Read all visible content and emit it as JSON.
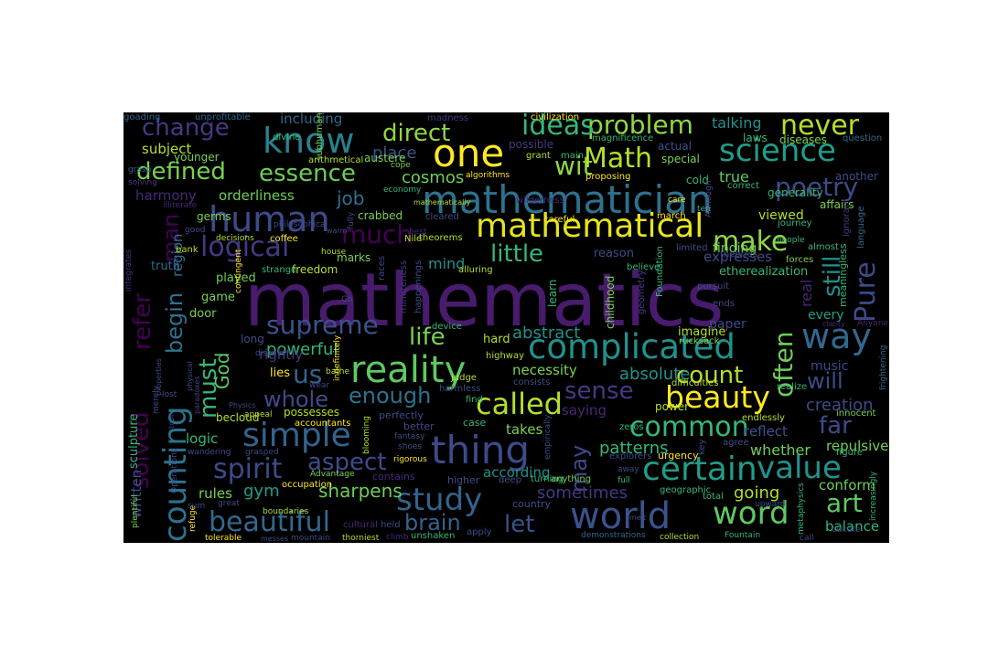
{
  "palette": {
    "background": "#000000",
    "page_background": "#ffffff",
    "colormap": "viridis",
    "colors": [
      "#440154",
      "#482878",
      "#3e4989",
      "#31688e",
      "#26828e",
      "#1f9e89",
      "#35b779",
      "#6ece58",
      "#b5de2b",
      "#fde725"
    ]
  },
  "words": [
    {
      "text": "mathematics",
      "color": "#481b6d"
    },
    {
      "text": "mathematician",
      "color": "#2c728e"
    },
    {
      "text": "complicated",
      "color": "#21918c"
    },
    {
      "text": "mathematical",
      "color": "#e5e419"
    },
    {
      "text": "thing",
      "color": "#3e4a89"
    },
    {
      "text": "world",
      "color": "#3b528b"
    },
    {
      "text": "simple",
      "color": "#33638d"
    },
    {
      "text": "reality",
      "color": "#5ec962"
    },
    {
      "text": "one",
      "color": "#fde725"
    },
    {
      "text": "human",
      "color": "#3e4a89"
    },
    {
      "text": "know",
      "color": "#26828e"
    },
    {
      "text": "science",
      "color": "#1f9e89"
    },
    {
      "text": "way",
      "color": "#31688e"
    },
    {
      "text": "beauty",
      "color": "#fde725"
    },
    {
      "text": "study",
      "color": "#33638d"
    },
    {
      "text": "certain",
      "color": "#1f9e89"
    },
    {
      "text": "value",
      "color": "#21918c"
    },
    {
      "text": "word",
      "color": "#5ec962"
    },
    {
      "text": "counting",
      "color": "#2c728e"
    },
    {
      "text": "make",
      "color": "#90d743"
    },
    {
      "text": "called",
      "color": "#b5de2b"
    },
    {
      "text": "beautiful",
      "color": "#31688e"
    },
    {
      "text": "spirit",
      "color": "#3e4a89"
    },
    {
      "text": "common",
      "color": "#35b779"
    },
    {
      "text": "supreme",
      "color": "#3b528b"
    },
    {
      "text": "problem",
      "color": "#90d743"
    },
    {
      "text": "never",
      "color": "#b5de2b"
    },
    {
      "text": "ideas",
      "color": "#35b779"
    },
    {
      "text": "logical",
      "color": "#443983"
    },
    {
      "text": "much",
      "color": "#440154"
    },
    {
      "text": "Pure",
      "color": "#3e4a89"
    },
    {
      "text": "poetry",
      "color": "#3e4a89"
    },
    {
      "text": "wit",
      "color": "#90d743"
    },
    {
      "text": "Math",
      "color": "#b5de2b"
    },
    {
      "text": "us",
      "color": "#33638d"
    },
    {
      "text": "art",
      "color": "#5ec962"
    },
    {
      "text": "let",
      "color": "#3b528b"
    },
    {
      "text": "whole",
      "color": "#3e4a89"
    },
    {
      "text": "enough",
      "color": "#2c728e"
    },
    {
      "text": "aspect",
      "color": "#3e4a89"
    },
    {
      "text": "often",
      "color": "#6ece58"
    },
    {
      "text": "change",
      "color": "#443983"
    },
    {
      "text": "defined",
      "color": "#7ad151"
    },
    {
      "text": "essence",
      "color": "#6ece58"
    },
    {
      "text": "direct",
      "color": "#90d743"
    },
    {
      "text": "must",
      "color": "#35b779"
    },
    {
      "text": "life",
      "color": "#7ad151"
    },
    {
      "text": "little",
      "color": "#35b779"
    },
    {
      "text": "count",
      "color": "#b5de2b"
    },
    {
      "text": "sense",
      "color": "#443983"
    },
    {
      "text": "far",
      "color": "#3e4a89"
    },
    {
      "text": "will",
      "color": "#3e4a89"
    },
    {
      "text": "still",
      "color": "#21918c"
    },
    {
      "text": "brain",
      "color": "#33638d"
    },
    {
      "text": "gym",
      "color": "#1f9e89"
    },
    {
      "text": "solved",
      "color": "#440154"
    },
    {
      "text": "refer",
      "color": "#440154"
    },
    {
      "text": "begin",
      "color": "#2c728e"
    },
    {
      "text": "may",
      "color": "#3e4a89"
    },
    {
      "text": "sometimes",
      "color": "#443983"
    },
    {
      "text": "sharpens",
      "color": "#6ece58"
    },
    {
      "text": "patterns",
      "color": "#35b779"
    },
    {
      "text": "going",
      "color": "#b5de2b"
    },
    {
      "text": "creation",
      "color": "#3e4a89"
    },
    {
      "text": "God",
      "color": "#5ec962"
    },
    {
      "text": "man",
      "color": "#440154"
    },
    {
      "text": "job",
      "color": "#2c728e"
    },
    {
      "text": "cosmos",
      "color": "#6ece58"
    },
    {
      "text": "abstract",
      "color": "#21918c"
    },
    {
      "text": "absolute",
      "color": "#21918c"
    },
    {
      "text": "powerful",
      "color": "#35b779"
    },
    {
      "text": "necessity",
      "color": "#7ad151"
    },
    {
      "text": "mind",
      "color": "#21918c"
    },
    {
      "text": "place",
      "color": "#3b528b"
    },
    {
      "text": "talking",
      "color": "#21918c"
    },
    {
      "text": "true",
      "color": "#5ec962"
    },
    {
      "text": "whether",
      "color": "#6ece58"
    },
    {
      "text": "written",
      "color": "#3b528b"
    },
    {
      "text": "harmony",
      "color": "#482878"
    },
    {
      "text": "subject",
      "color": "#b5de2b"
    },
    {
      "text": "orderliness",
      "color": "#6ece58"
    },
    {
      "text": "including",
      "color": "#31688e"
    },
    {
      "text": "region",
      "color": "#2c728e"
    },
    {
      "text": "takes",
      "color": "#7ad151"
    },
    {
      "text": "saying",
      "color": "#482878"
    },
    {
      "text": "according",
      "color": "#21918c"
    },
    {
      "text": "conform",
      "color": "#6ece58"
    },
    {
      "text": "balance",
      "color": "#35b779"
    },
    {
      "text": "rules",
      "color": "#7ad151"
    },
    {
      "text": "logic",
      "color": "#35b779"
    },
    {
      "text": "reflect",
      "color": "#3b528b"
    },
    {
      "text": "repulsive",
      "color": "#6ece58"
    },
    {
      "text": "rightly",
      "color": "#443983"
    },
    {
      "text": "expresses",
      "color": "#3e4a89"
    },
    {
      "text": "finding",
      "color": "#6ece58"
    },
    {
      "text": "viewed",
      "color": "#b5de2b"
    },
    {
      "text": "real",
      "color": "#482878"
    },
    {
      "text": "music",
      "color": "#3e4a89"
    },
    {
      "text": "every",
      "color": "#1f9e89"
    },
    {
      "text": "paper",
      "color": "#3e4a89"
    },
    {
      "text": "hard",
      "color": "#b5de2b"
    },
    {
      "text": "imagine",
      "color": "#b5de2b"
    },
    {
      "text": "played",
      "color": "#6ece58"
    },
    {
      "text": "truth",
      "color": "#31688e"
    },
    {
      "text": "game",
      "color": "#7ad151"
    },
    {
      "text": "door",
      "color": "#7ad151"
    },
    {
      "text": "lies",
      "color": "#fde725"
    },
    {
      "text": "possesses",
      "color": "#b5de2b"
    },
    {
      "text": "freedom",
      "color": "#b5de2b"
    },
    {
      "text": "marks",
      "color": "#7ad151"
    },
    {
      "text": "crabbed",
      "color": "#7ad151"
    },
    {
      "text": "special",
      "color": "#7ad151"
    },
    {
      "text": "cold",
      "color": "#35b779"
    },
    {
      "text": "actual",
      "color": "#3b528b"
    },
    {
      "text": "younger",
      "color": "#7ad151"
    },
    {
      "text": "germs",
      "color": "#7ad151"
    },
    {
      "text": "diseases",
      "color": "#7ad151"
    },
    {
      "text": "laws",
      "color": "#35b779"
    },
    {
      "text": "generality",
      "color": "#35b779"
    },
    {
      "text": "another",
      "color": "#3e4a89"
    },
    {
      "text": "affairs",
      "color": "#7ad151"
    },
    {
      "text": "question",
      "color": "#31688e"
    },
    {
      "text": "possible",
      "color": "#443983"
    },
    {
      "text": "magnificence",
      "color": "#35b779"
    },
    {
      "text": "austere",
      "color": "#7ad151"
    },
    {
      "text": "arithmetical",
      "color": "#b5de2b"
    },
    {
      "text": "divine",
      "color": "#35b779"
    },
    {
      "text": "unprofitable",
      "color": "#31688e"
    },
    {
      "text": "goading",
      "color": "#31688e"
    },
    {
      "text": "madness",
      "color": "#443983"
    },
    {
      "text": "civilization",
      "color": "#fde725"
    },
    {
      "text": "subhuman",
      "color": "#7ad151"
    },
    {
      "text": "grant",
      "color": "#b5de2b"
    },
    {
      "text": "main",
      "color": "#35b779"
    },
    {
      "text": "algorithms",
      "color": "#fde725"
    },
    {
      "text": "proposing",
      "color": "#fde725"
    },
    {
      "text": "correct",
      "color": "#35b779"
    },
    {
      "text": "language",
      "color": "#31688e"
    },
    {
      "text": "ignorant",
      "color": "#443983"
    },
    {
      "text": "journey",
      "color": "#35b779"
    },
    {
      "text": "forces",
      "color": "#7ad151"
    },
    {
      "text": "almost",
      "color": "#35b779"
    },
    {
      "text": "limited",
      "color": "#3e4a89"
    },
    {
      "text": "theories",
      "color": "#3e4a89"
    },
    {
      "text": "theorems",
      "color": "#b5de2b"
    },
    {
      "text": "Nile",
      "color": "#b5de2b"
    },
    {
      "text": "careful",
      "color": "#fde725"
    },
    {
      "text": "march",
      "color": "#fde725"
    },
    {
      "text": "cleared",
      "color": "#3e4a89"
    },
    {
      "text": "coffee",
      "color": "#fde725"
    },
    {
      "text": "decisions",
      "color": "#b5de2b"
    },
    {
      "text": "house",
      "color": "#b5de2b"
    },
    {
      "text": "strange",
      "color": "#35b779"
    },
    {
      "text": "bank",
      "color": "#b5de2b"
    },
    {
      "text": "good",
      "color": "#3e4a89"
    },
    {
      "text": "philosophical",
      "color": "#3e4a89"
    },
    {
      "text": "economy",
      "color": "#35b779"
    },
    {
      "text": "wilderness",
      "color": "#482878"
    },
    {
      "text": "mathematically",
      "color": "#b5de2b"
    },
    {
      "text": "illiterate",
      "color": "#482878"
    },
    {
      "text": "grasp",
      "color": "#31688e"
    },
    {
      "text": "solving",
      "color": "#443983"
    },
    {
      "text": "integrates",
      "color": "#443983"
    },
    {
      "text": "reason",
      "color": "#3e4a89"
    },
    {
      "text": "believe",
      "color": "#35b779"
    },
    {
      "text": "geometry",
      "color": "#443983"
    },
    {
      "text": "Foundation",
      "color": "#35b779"
    },
    {
      "text": "childhood",
      "color": "#7ad151"
    },
    {
      "text": "learn",
      "color": "#35b779"
    },
    {
      "text": "happenings",
      "color": "#3e4a89"
    },
    {
      "text": "alluring",
      "color": "#b5de2b"
    },
    {
      "text": "races",
      "color": "#3e4a89"
    },
    {
      "text": "minuteness",
      "color": "#443983"
    },
    {
      "text": "contingent",
      "color": "#fde725"
    },
    {
      "text": "device",
      "color": "#35b779"
    },
    {
      "text": "highway",
      "color": "#b5de2b"
    },
    {
      "text": "rucksack",
      "color": "#7ad151"
    },
    {
      "text": "pursuit",
      "color": "#3e4a89"
    },
    {
      "text": "ends",
      "color": "#3e4a89"
    },
    {
      "text": "meaningless",
      "color": "#35b779"
    },
    {
      "text": "etherealization",
      "color": "#35b779"
    },
    {
      "text": "Anyone",
      "color": "#482878"
    },
    {
      "text": "clarity",
      "color": "#482878"
    },
    {
      "text": "frightening",
      "color": "#31688e"
    },
    {
      "text": "realize",
      "color": "#35b779"
    },
    {
      "text": "difficulties",
      "color": "#b5de2b"
    },
    {
      "text": "innocent",
      "color": "#7ad151"
    },
    {
      "text": "endlessly",
      "color": "#b5de2b"
    },
    {
      "text": "power",
      "color": "#b5de2b"
    },
    {
      "text": "zeros",
      "color": "#35b779"
    },
    {
      "text": "agree",
      "color": "#3e4a89"
    },
    {
      "text": "urgency",
      "color": "#fde725"
    },
    {
      "text": "explorers",
      "color": "#3e4a89"
    },
    {
      "text": "figure",
      "color": "#35b779"
    },
    {
      "text": "key",
      "color": "#3e4a89"
    },
    {
      "text": "increasingly",
      "color": "#35b779"
    },
    {
      "text": "upward",
      "color": "#3e4a89"
    },
    {
      "text": "total",
      "color": "#35b779"
    },
    {
      "text": "geographic",
      "color": "#35b779"
    },
    {
      "text": "metaphysics",
      "color": "#35b779"
    },
    {
      "text": "culture",
      "color": "#3e4a89"
    },
    {
      "text": "call",
      "color": "#3e4a89"
    },
    {
      "text": "Fountain",
      "color": "#35b779"
    },
    {
      "text": "collection",
      "color": "#b5de2b"
    },
    {
      "text": "demonstrations",
      "color": "#31688e"
    },
    {
      "text": "unshaken",
      "color": "#35b779"
    },
    {
      "text": "apply",
      "color": "#3e4a89"
    },
    {
      "text": "country",
      "color": "#3e4a89"
    },
    {
      "text": "anything",
      "color": "#7ad151"
    },
    {
      "text": "turning",
      "color": "#35b779"
    },
    {
      "text": "deep",
      "color": "#3e4a89"
    },
    {
      "text": "higher",
      "color": "#3e4a89"
    },
    {
      "text": "away",
      "color": "#3e4a89"
    },
    {
      "text": "full",
      "color": "#35b779"
    },
    {
      "text": "case",
      "color": "#35b779"
    },
    {
      "text": "better",
      "color": "#3e4a89"
    },
    {
      "text": "fantasy",
      "color": "#3e4a89"
    },
    {
      "text": "shoes",
      "color": "#3e4a89"
    },
    {
      "text": "rigorous",
      "color": "#fde725"
    },
    {
      "text": "find",
      "color": "#35b779"
    },
    {
      "text": "consists",
      "color": "#3e4a89"
    },
    {
      "text": "judge",
      "color": "#b5de2b"
    },
    {
      "text": "harmless",
      "color": "#3e4a89"
    },
    {
      "text": "perfectly",
      "color": "#3e4a89"
    },
    {
      "text": "blooming",
      "color": "#b5de2b"
    },
    {
      "text": "contains",
      "color": "#482878"
    },
    {
      "text": "Advantage",
      "color": "#7ad151"
    },
    {
      "text": "occupation",
      "color": "#fde725"
    },
    {
      "text": "accountants",
      "color": "#fde725"
    },
    {
      "text": "cultural",
      "color": "#482878"
    },
    {
      "text": "held",
      "color": "#3e4a89"
    },
    {
      "text": "thorniest",
      "color": "#b5de2b"
    },
    {
      "text": "climb",
      "color": "#482878"
    },
    {
      "text": "mountain",
      "color": "#3e4a89"
    },
    {
      "text": "tolerable",
      "color": "#fde725"
    },
    {
      "text": "refuge",
      "color": "#fde725"
    },
    {
      "text": "plentiful",
      "color": "#7ad151"
    },
    {
      "text": "sum",
      "color": "#3e4a89"
    },
    {
      "text": "great",
      "color": "#3e4a89"
    },
    {
      "text": "boundaries",
      "color": "#b5de2b"
    },
    {
      "text": "grasped",
      "color": "#3e4a89"
    },
    {
      "text": "wandering",
      "color": "#3e4a89"
    },
    {
      "text": "Operations",
      "color": "#3e4a89"
    },
    {
      "text": "merely",
      "color": "#3e4a89"
    },
    {
      "text": "sculpture",
      "color": "#35b779"
    },
    {
      "text": "long",
      "color": "#3e4a89"
    },
    {
      "text": "properties",
      "color": "#3e4a89"
    },
    {
      "text": "physical",
      "color": "#3e4a89"
    },
    {
      "text": "paradoxes",
      "color": "#3e4a89"
    },
    {
      "text": "lost",
      "color": "#3e4a89"
    },
    {
      "text": "tool",
      "color": "#3e4a89"
    },
    {
      "text": "Physics",
      "color": "#3e4a89"
    },
    {
      "text": "becloud",
      "color": "#b5de2b"
    },
    {
      "text": "appeal",
      "color": "#b5de2b"
    },
    {
      "text": "wear",
      "color": "#3e4a89"
    },
    {
      "text": "bathe",
      "color": "#b5de2b"
    },
    {
      "text": "indefinitely",
      "color": "#fde725"
    },
    {
      "text": "discover",
      "color": "#3e4a89"
    },
    {
      "text": "Go",
      "color": "#3e4a89"
    },
    {
      "text": "cope",
      "color": "#7ad151"
    },
    {
      "text": "fully",
      "color": "#3e4a89"
    },
    {
      "text": "best",
      "color": "#482878"
    },
    {
      "text": "care",
      "color": "#fde725"
    },
    {
      "text": "Although",
      "color": "#3e4a89"
    },
    {
      "text": "ten",
      "color": "#35b779"
    },
    {
      "text": "people",
      "color": "#35b779"
    },
    {
      "text": "empirically",
      "color": "#3e4a89"
    },
    {
      "text": "messes",
      "color": "#3e4a89"
    },
    {
      "text": "melt",
      "color": "#3e4a89"
    },
    {
      "text": "warm",
      "color": "#3e4a89"
    }
  ]
}
